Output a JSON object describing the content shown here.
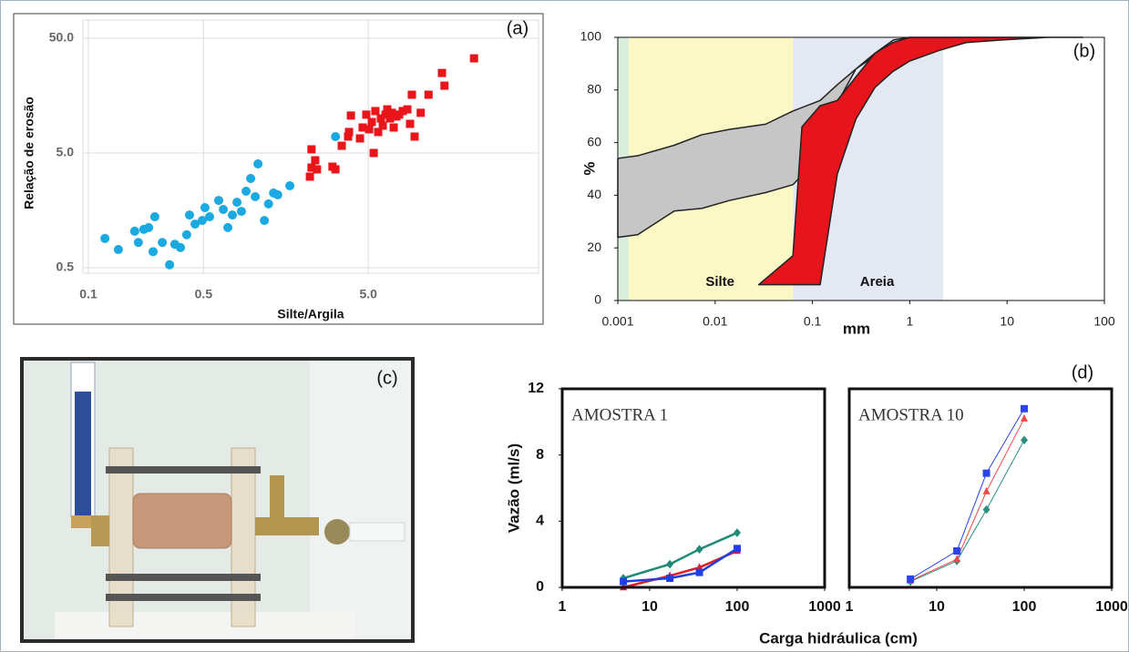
{
  "chart_data": [
    {
      "type": "scatter",
      "panel_label": "(a)",
      "x_label": "Silte/Argila",
      "y_label": "Relação de erosão",
      "xscale": "log",
      "yscale": "log",
      "xlim": [
        0.1,
        50
      ],
      "ylim": [
        0.5,
        50
      ],
      "xticks": [
        0.1,
        0.5,
        {
          "value": 5,
          "label": "5.0"
        }
      ],
      "yticks": [
        0.5,
        {
          "value": 5,
          "label": "5.0"
        },
        {
          "value": 50,
          "label": "50.0"
        }
      ],
      "grid": true,
      "series": [
        {
          "color": "#1aa9e0",
          "marker": "circle",
          "x": [
            0.126,
            0.152,
            0.191,
            0.201,
            0.217,
            0.232,
            0.253,
            0.247,
            0.281,
            0.311,
            0.335,
            0.362,
            0.395,
            0.411,
            0.444,
            0.491,
            0.51,
            0.544,
            0.618,
            0.659,
            0.702,
            0.748,
            0.798,
            0.849,
            0.906,
            0.966,
            1.03,
            1.07,
            1.17,
            1.24,
            1.33,
            1.41,
            1.67,
            3.16
          ],
          "values": [
            0.9,
            0.72,
            1.04,
            0.83,
            1.08,
            1.12,
            1.39,
            0.69,
            0.83,
            0.53,
            0.8,
            0.75,
            0.97,
            1.44,
            1.2,
            1.29,
            1.67,
            1.39,
            1.93,
            1.61,
            1.12,
            1.44,
            1.86,
            1.55,
            2.32,
            3.0,
            2.08,
            4.02,
            1.29,
            1.8,
            2.24,
            2.16,
            2.59,
            6.95
          ]
        },
        {
          "color": "#e8151a",
          "marker": "square",
          "x": [
            2.21,
            2.26,
            2.38,
            2.44,
            3.03,
            3.16,
            2.26,
            3.45,
            3.77,
            3.92,
            3.82,
            4.45,
            4.62,
            4.86,
            5.06,
            5.25,
            5.39,
            5.52,
            5.74,
            5.96,
            6.12,
            6.36,
            6.52,
            6.77,
            6.95,
            7.13,
            7.4,
            7.69,
            8.09,
            8.63,
            8.96,
            9.19,
            9.55,
            10.4,
            11.6,
            14.0,
            14.5,
            21.9
          ],
          "values": [
            3.11,
            3.73,
            4.32,
            3.6,
            3.8,
            3.6,
            5.38,
            5.78,
            6.95,
            10.6,
            7.62,
            6.7,
            8.34,
            10.8,
            8.04,
            9.31,
            5.0,
            11.6,
            7.62,
            10.0,
            8.65,
            10.8,
            12.0,
            10.0,
            11.2,
            8.34,
            10.4,
            10.8,
            11.6,
            12.0,
            8.97,
            16.1,
            6.95,
            11.2,
            16.1,
            24.9,
            19.3,
            33.4
          ]
        }
      ]
    },
    {
      "type": "area",
      "panel_label": "(b)",
      "x_label": "mm",
      "y_label": "%",
      "xscale": "log",
      "xlim": [
        0.001,
        100
      ],
      "ylim": [
        0,
        100
      ],
      "xticks": [
        0.001,
        0.01,
        0.1,
        1,
        10,
        100
      ],
      "yticks": [
        0,
        20,
        40,
        60,
        80,
        100
      ],
      "regions": [
        {
          "range": [
            0.001,
            0.0013
          ],
          "color": "#d9eedd"
        },
        {
          "name": "Silte",
          "range": [
            0.0013,
            0.063
          ],
          "color": "#fbf8c6"
        },
        {
          "name": "Areia",
          "range": [
            0.063,
            2.2
          ],
          "color": "#e3e8f3"
        }
      ],
      "series": [
        {
          "color": "#c6c6c6",
          "x": [
            0.001,
            0.0016,
            0.0038,
            0.0073,
            0.014,
            0.033,
            0.063,
            0.12,
            0.18,
            0.28,
            0.44,
            0.68,
            1.0
          ],
          "upper": [
            54,
            55,
            59,
            63,
            65,
            67,
            72,
            76,
            82,
            88,
            94,
            99,
            100
          ],
          "lower": [
            24,
            25,
            34,
            35,
            38,
            41,
            44,
            55,
            75,
            88,
            93,
            97,
            100
          ]
        },
        {
          "color": "#e8141c",
          "x": [
            0.028,
            0.063,
            0.078,
            0.12,
            0.18,
            0.28,
            0.44,
            0.67,
            1.0,
            2.0,
            3.8,
            8.9,
            26,
            60
          ],
          "upper": [
            6,
            17,
            66,
            74,
            76,
            85,
            94,
            98,
            100,
            100,
            100,
            100,
            100,
            100
          ],
          "lower": [
            6,
            6,
            6,
            6,
            48,
            69,
            81,
            87,
            91,
            95,
            98,
            99,
            100,
            100
          ]
        }
      ]
    },
    {
      "type": "line",
      "title": "AMOSTRA 1",
      "x_label": "Carga hidráulica (cm)",
      "y_label": "Vazão (ml/s)",
      "xscale": "log",
      "xlim": [
        1,
        1000
      ],
      "ylim": [
        0,
        12
      ],
      "xticks": [
        1,
        10,
        100,
        1000
      ],
      "yticks": [
        0,
        4,
        8,
        12
      ],
      "x": [
        5,
        17,
        37,
        100
      ],
      "series": [
        {
          "color": "#1f8a78",
          "marker": "diamond",
          "values": [
            0.55,
            1.4,
            2.3,
            3.3
          ]
        },
        {
          "color": "#e31b23",
          "marker": "triangle",
          "values": [
            0,
            0.7,
            1.2,
            2.2
          ]
        },
        {
          "color": "#1f3fe0",
          "marker": "square",
          "values": [
            0.35,
            0.55,
            0.9,
            2.35
          ]
        }
      ]
    },
    {
      "type": "line",
      "title": "AMOSTRA 10",
      "panel_label": "(d)",
      "xscale": "log",
      "xlim": [
        1,
        1000
      ],
      "ylim": [
        0,
        12
      ],
      "xticks": [
        1,
        10,
        100,
        1000
      ],
      "x": [
        5,
        17,
        37,
        100
      ],
      "series": [
        {
          "color": "#2a8f80",
          "marker": "diamond",
          "values": [
            0.35,
            1.6,
            4.7,
            8.9
          ]
        },
        {
          "color": "#ef4b4b",
          "marker": "triangle",
          "values": [
            0.4,
            1.7,
            5.8,
            10.2
          ]
        },
        {
          "color": "#2a44e8",
          "marker": "square",
          "values": [
            0.5,
            2.2,
            6.9,
            10.8
          ]
        }
      ]
    }
  ],
  "photo": {
    "label": "(c)"
  }
}
